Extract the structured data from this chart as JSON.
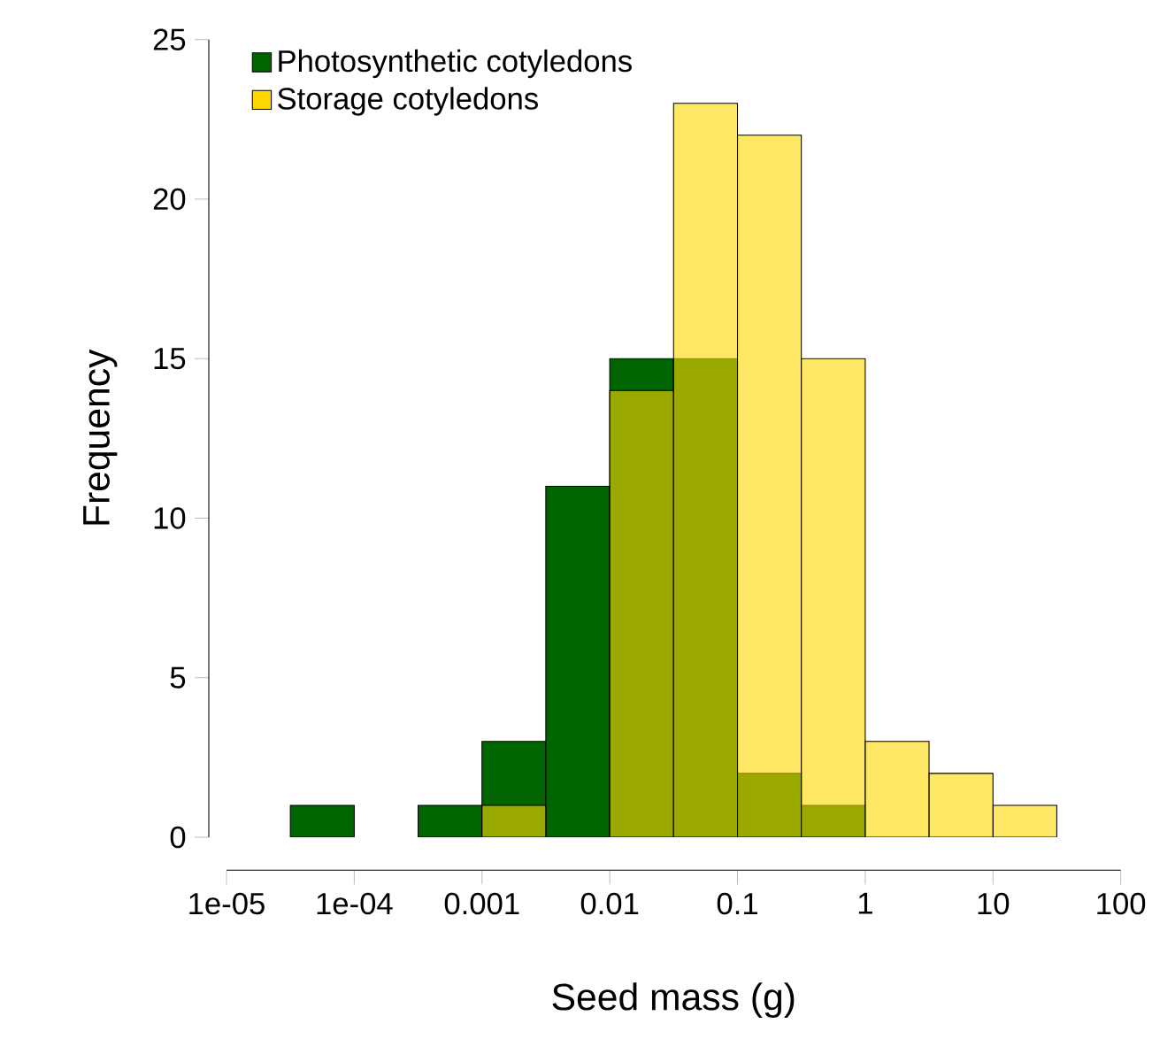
{
  "chart_data": {
    "type": "histogram",
    "xlabel": "Seed mass (g)",
    "ylabel": "Frequency",
    "log": "x",
    "bins": [
      3.16e-05,
      0.0001,
      0.000316,
      0.001,
      0.00316,
      0.01,
      0.0316,
      0.1,
      0.316,
      1,
      3.16,
      10,
      31.6
    ],
    "series": [
      {
        "name": "Photosynthetic cotyledons",
        "color": "#006400",
        "values": [
          1,
          0,
          1,
          3,
          11,
          15,
          15,
          2,
          1,
          0,
          0,
          0
        ]
      },
      {
        "name": "Storage cotyledons",
        "color": "#ffd700",
        "values": [
          0,
          0,
          0,
          1,
          0,
          14,
          23,
          22,
          15,
          3,
          2,
          1
        ]
      }
    ],
    "xlim": [
      1e-05,
      100
    ],
    "xticks": [
      {
        "value": 1e-05,
        "label": "1e-05"
      },
      {
        "value": 0.0001,
        "label": "1e-04"
      },
      {
        "value": 0.001,
        "label": "0.001"
      },
      {
        "value": 0.01,
        "label": "0.01"
      },
      {
        "value": 0.1,
        "label": "0.1"
      },
      {
        "value": 1,
        "label": "1"
      },
      {
        "value": 10,
        "label": "10"
      },
      {
        "value": 100,
        "label": "100"
      }
    ],
    "ylim": [
      0,
      25
    ],
    "yticks": [
      0,
      5,
      10,
      15,
      20,
      25
    ],
    "legend": "top left",
    "grid": false
  }
}
